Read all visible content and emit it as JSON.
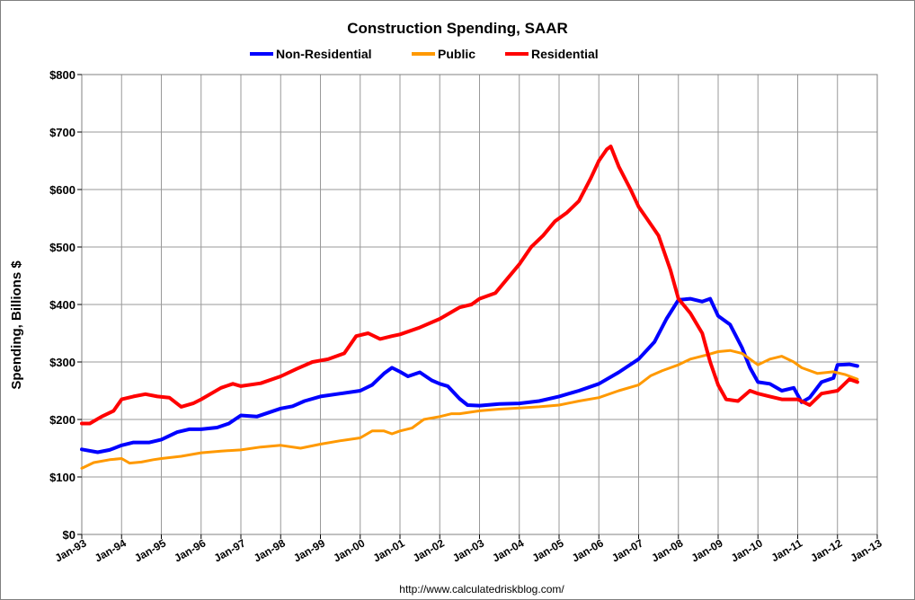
{
  "chart_data": {
    "type": "line",
    "title": "Construction Spending, SAAR",
    "ylabel": "Spending, Billions $",
    "xlabel": "",
    "ylim": [
      0,
      800
    ],
    "y_ticks": [
      "$0",
      "$100",
      "$200",
      "$300",
      "$400",
      "$500",
      "$600",
      "$700",
      "$800"
    ],
    "x_ticks": [
      "Jan-93",
      "Jan-94",
      "Jan-95",
      "Jan-96",
      "Jan-97",
      "Jan-98",
      "Jan-99",
      "Jan-00",
      "Jan-01",
      "Jan-02",
      "Jan-03",
      "Jan-04",
      "Jan-05",
      "Jan-06",
      "Jan-07",
      "Jan-08",
      "Jan-09",
      "Jan-10",
      "Jan-11",
      "Jan-12",
      "Jan-13"
    ],
    "x_range": [
      1993,
      2013
    ],
    "legend_position": "top",
    "source": "http://www.calculatedriskblog.com/",
    "series": [
      {
        "name": "Non-Residential",
        "color": "#0000ff",
        "points": [
          [
            1993.0,
            148
          ],
          [
            1993.4,
            143
          ],
          [
            1993.7,
            147
          ],
          [
            1994.0,
            155
          ],
          [
            1994.3,
            160
          ],
          [
            1994.7,
            160
          ],
          [
            1995.0,
            165
          ],
          [
            1995.4,
            178
          ],
          [
            1995.7,
            183
          ],
          [
            1996.0,
            183
          ],
          [
            1996.4,
            186
          ],
          [
            1996.7,
            193
          ],
          [
            1997.0,
            207
          ],
          [
            1997.4,
            205
          ],
          [
            1997.7,
            212
          ],
          [
            1998.0,
            219
          ],
          [
            1998.3,
            223
          ],
          [
            1998.6,
            232
          ],
          [
            1999.0,
            240
          ],
          [
            1999.5,
            245
          ],
          [
            2000.0,
            250
          ],
          [
            2000.3,
            260
          ],
          [
            2000.6,
            280
          ],
          [
            2000.8,
            290
          ],
          [
            2001.0,
            283
          ],
          [
            2001.2,
            275
          ],
          [
            2001.5,
            282
          ],
          [
            2001.8,
            268
          ],
          [
            2002.0,
            262
          ],
          [
            2002.2,
            258
          ],
          [
            2002.5,
            236
          ],
          [
            2002.7,
            225
          ],
          [
            2003.0,
            224
          ],
          [
            2003.5,
            227
          ],
          [
            2004.0,
            228
          ],
          [
            2004.5,
            232
          ],
          [
            2005.0,
            240
          ],
          [
            2005.5,
            250
          ],
          [
            2006.0,
            262
          ],
          [
            2006.5,
            282
          ],
          [
            2007.0,
            305
          ],
          [
            2007.4,
            335
          ],
          [
            2007.7,
            375
          ],
          [
            2008.0,
            408
          ],
          [
            2008.3,
            410
          ],
          [
            2008.6,
            405
          ],
          [
            2008.8,
            410
          ],
          [
            2009.0,
            380
          ],
          [
            2009.3,
            365
          ],
          [
            2009.6,
            325
          ],
          [
            2009.8,
            290
          ],
          [
            2010.0,
            265
          ],
          [
            2010.3,
            262
          ],
          [
            2010.6,
            250
          ],
          [
            2010.9,
            255
          ],
          [
            2011.1,
            230
          ],
          [
            2011.3,
            238
          ],
          [
            2011.6,
            265
          ],
          [
            2011.9,
            272
          ],
          [
            2012.0,
            295
          ],
          [
            2012.3,
            296
          ],
          [
            2012.5,
            293
          ]
        ]
      },
      {
        "name": "Public",
        "color": "#ff9900",
        "points": [
          [
            1993.0,
            115
          ],
          [
            1993.3,
            125
          ],
          [
            1993.7,
            130
          ],
          [
            1994.0,
            132
          ],
          [
            1994.2,
            124
          ],
          [
            1994.5,
            126
          ],
          [
            1994.8,
            130
          ],
          [
            1995.0,
            132
          ],
          [
            1995.5,
            136
          ],
          [
            1996.0,
            142
          ],
          [
            1996.5,
            145
          ],
          [
            1997.0,
            147
          ],
          [
            1997.5,
            152
          ],
          [
            1998.0,
            155
          ],
          [
            1998.5,
            150
          ],
          [
            1999.0,
            157
          ],
          [
            1999.5,
            163
          ],
          [
            2000.0,
            168
          ],
          [
            2000.3,
            180
          ],
          [
            2000.6,
            180
          ],
          [
            2000.8,
            175
          ],
          [
            2001.0,
            180
          ],
          [
            2001.3,
            185
          ],
          [
            2001.6,
            200
          ],
          [
            2002.0,
            205
          ],
          [
            2002.3,
            210
          ],
          [
            2002.5,
            210
          ],
          [
            2003.0,
            215
          ],
          [
            2003.5,
            218
          ],
          [
            2004.0,
            220
          ],
          [
            2004.5,
            222
          ],
          [
            2005.0,
            225
          ],
          [
            2005.5,
            232
          ],
          [
            2006.0,
            238
          ],
          [
            2006.5,
            250
          ],
          [
            2007.0,
            260
          ],
          [
            2007.3,
            276
          ],
          [
            2007.6,
            285
          ],
          [
            2008.0,
            295
          ],
          [
            2008.3,
            305
          ],
          [
            2008.7,
            312
          ],
          [
            2009.0,
            318
          ],
          [
            2009.3,
            320
          ],
          [
            2009.6,
            315
          ],
          [
            2009.8,
            305
          ],
          [
            2010.0,
            295
          ],
          [
            2010.3,
            305
          ],
          [
            2010.6,
            310
          ],
          [
            2010.9,
            300
          ],
          [
            2011.1,
            290
          ],
          [
            2011.5,
            280
          ],
          [
            2011.9,
            283
          ],
          [
            2012.2,
            278
          ],
          [
            2012.5,
            270
          ]
        ]
      },
      {
        "name": "Residential",
        "color": "#ff0000",
        "points": [
          [
            1993.0,
            193
          ],
          [
            1993.2,
            193
          ],
          [
            1993.5,
            205
          ],
          [
            1993.8,
            215
          ],
          [
            1994.0,
            235
          ],
          [
            1994.3,
            240
          ],
          [
            1994.6,
            244
          ],
          [
            1994.9,
            240
          ],
          [
            1995.2,
            238
          ],
          [
            1995.5,
            222
          ],
          [
            1995.8,
            228
          ],
          [
            1996.0,
            235
          ],
          [
            1996.5,
            255
          ],
          [
            1996.8,
            262
          ],
          [
            1997.0,
            258
          ],
          [
            1997.5,
            263
          ],
          [
            1998.0,
            275
          ],
          [
            1998.4,
            288
          ],
          [
            1998.8,
            300
          ],
          [
            1999.2,
            305
          ],
          [
            1999.6,
            315
          ],
          [
            1999.9,
            345
          ],
          [
            2000.2,
            350
          ],
          [
            2000.5,
            340
          ],
          [
            2000.8,
            345
          ],
          [
            2001.0,
            348
          ],
          [
            2001.5,
            360
          ],
          [
            2002.0,
            375
          ],
          [
            2002.5,
            395
          ],
          [
            2002.8,
            400
          ],
          [
            2003.0,
            410
          ],
          [
            2003.4,
            420
          ],
          [
            2003.7,
            445
          ],
          [
            2004.0,
            470
          ],
          [
            2004.3,
            500
          ],
          [
            2004.6,
            520
          ],
          [
            2004.9,
            545
          ],
          [
            2005.2,
            560
          ],
          [
            2005.5,
            580
          ],
          [
            2005.8,
            620
          ],
          [
            2006.0,
            650
          ],
          [
            2006.2,
            670
          ],
          [
            2006.3,
            675
          ],
          [
            2006.5,
            640
          ],
          [
            2006.8,
            600
          ],
          [
            2007.0,
            570
          ],
          [
            2007.2,
            550
          ],
          [
            2007.5,
            520
          ],
          [
            2007.8,
            460
          ],
          [
            2008.0,
            410
          ],
          [
            2008.3,
            385
          ],
          [
            2008.6,
            350
          ],
          [
            2008.8,
            300
          ],
          [
            2009.0,
            260
          ],
          [
            2009.2,
            235
          ],
          [
            2009.5,
            232
          ],
          [
            2009.8,
            250
          ],
          [
            2010.0,
            245
          ],
          [
            2010.3,
            240
          ],
          [
            2010.6,
            235
          ],
          [
            2011.0,
            235
          ],
          [
            2011.3,
            225
          ],
          [
            2011.6,
            245
          ],
          [
            2012.0,
            250
          ],
          [
            2012.3,
            270
          ],
          [
            2012.5,
            265
          ]
        ]
      }
    ]
  }
}
